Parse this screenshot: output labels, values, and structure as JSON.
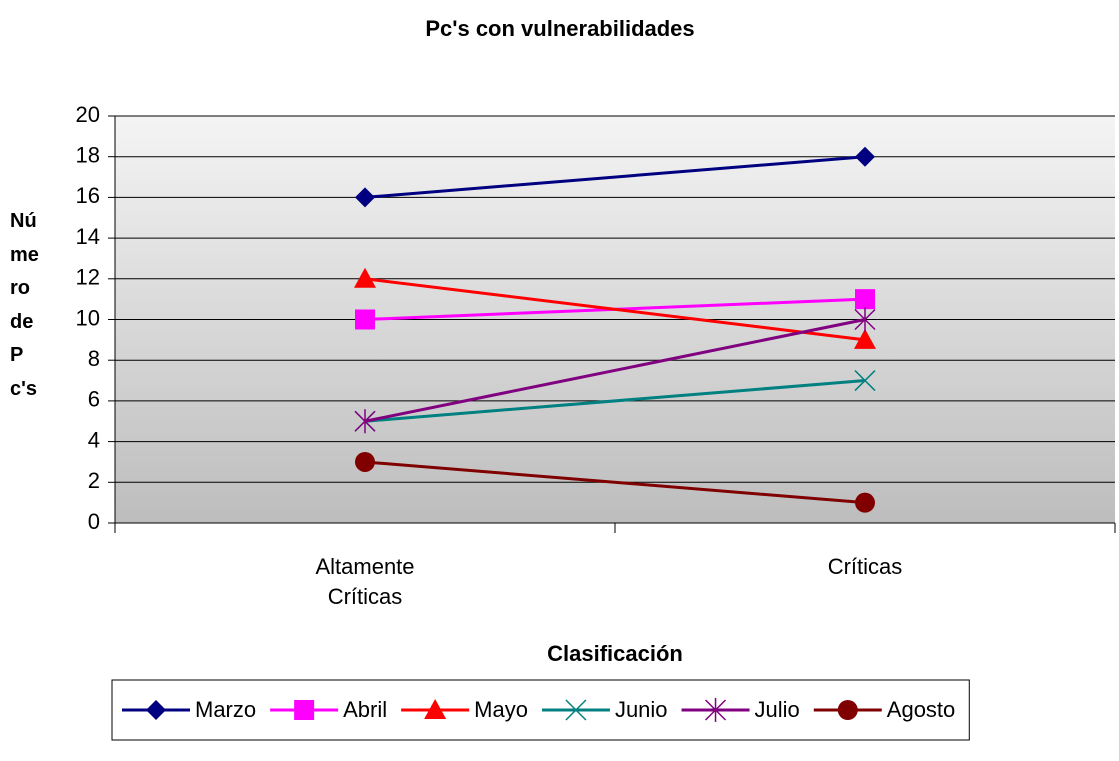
{
  "chart_data": {
    "type": "line",
    "title": "Pc's con vulnerabilidades",
    "xlabel": "Clasificación",
    "ylabel": "Número de Pc's",
    "categories": [
      "Altamente Críticas",
      "Críticas"
    ],
    "series": [
      {
        "name": "Marzo",
        "color": "#000080",
        "marker": "diamond",
        "values": [
          16,
          18
        ]
      },
      {
        "name": "Abril",
        "color": "#ff00ff",
        "marker": "square",
        "values": [
          10,
          11
        ]
      },
      {
        "name": "Mayo",
        "color": "#ff0000",
        "marker": "triangle",
        "values": [
          12,
          9
        ]
      },
      {
        "name": "Junio",
        "color": "#008080",
        "marker": "x",
        "values": [
          5,
          7
        ]
      },
      {
        "name": "Julio",
        "color": "#800080",
        "marker": "star",
        "values": [
          5,
          10
        ]
      },
      {
        "name": "Agosto",
        "color": "#800000",
        "marker": "circle",
        "values": [
          3,
          1
        ]
      }
    ],
    "ylim": [
      0,
      20
    ],
    "yticks": [
      0,
      2,
      4,
      6,
      8,
      10,
      12,
      14,
      16,
      18,
      20
    ],
    "grid": true,
    "legend": "bottom"
  }
}
